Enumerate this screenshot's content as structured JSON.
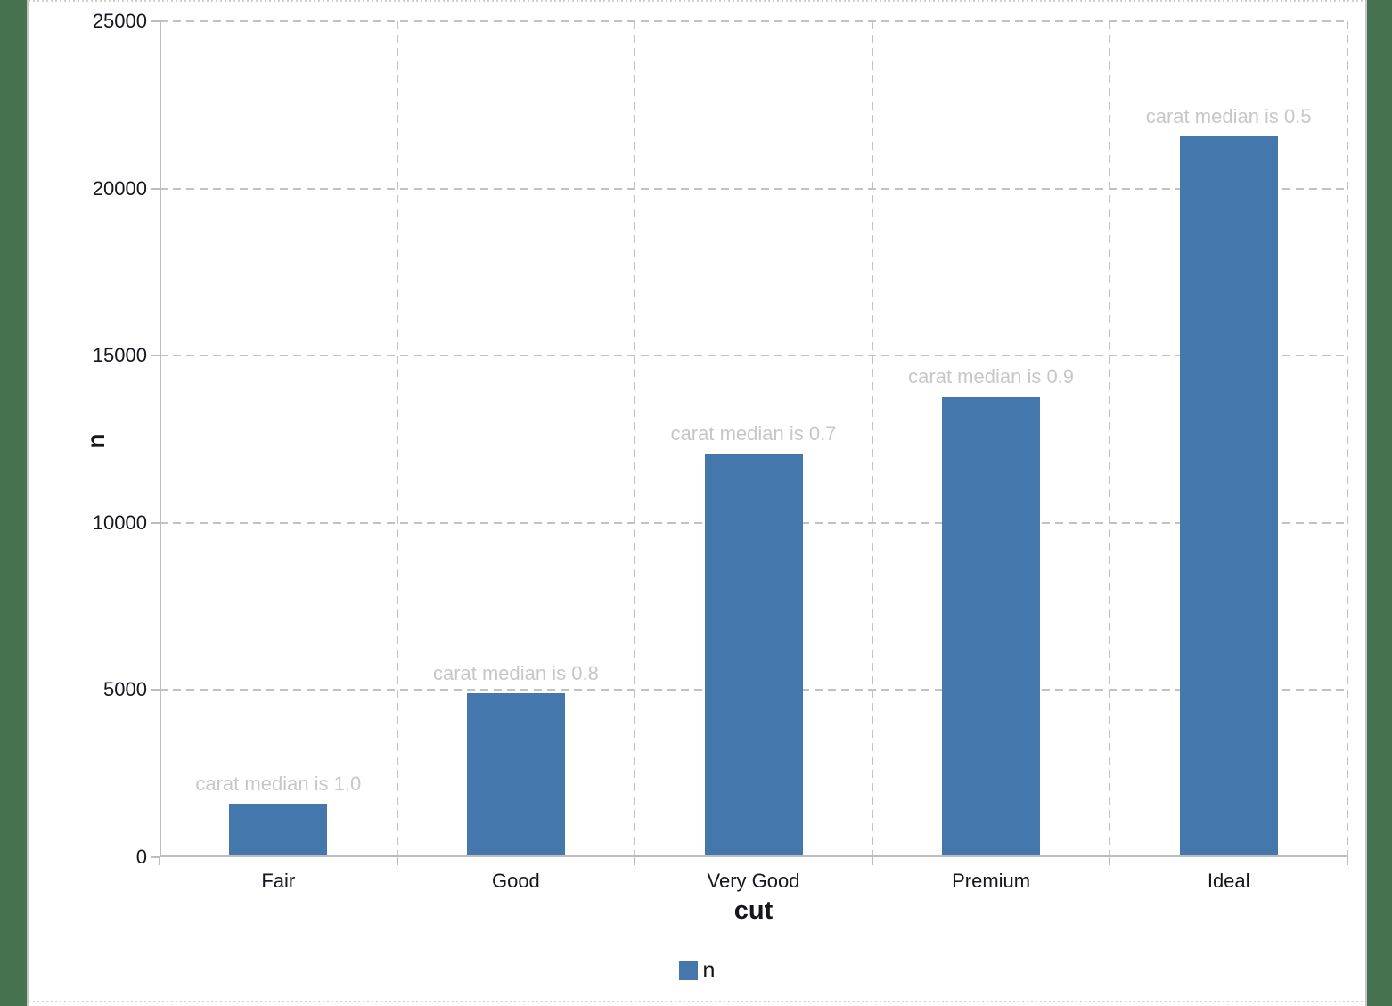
{
  "page": {
    "outer_background": "#47724F",
    "canvas_background": "#FFFFFF"
  },
  "chart_data": {
    "type": "bar",
    "title": "",
    "categories": [
      "Fair",
      "Good",
      "Very Good",
      "Premium",
      "Ideal"
    ],
    "series": [
      {
        "name": "n",
        "color": "#4478AC",
        "values": [
          1610,
          4906,
          12082,
          13791,
          21551
        ]
      }
    ],
    "bar_annotations": [
      "carat median is 1.0",
      "carat median is 0.8",
      "carat median is 0.7",
      "carat median is 0.9",
      "carat median is 0.5"
    ],
    "xlabel": "cut",
    "ylabel": "n",
    "ylim": [
      0,
      25000
    ],
    "yticks": [
      0,
      5000,
      10000,
      15000,
      20000,
      25000
    ],
    "grid": {
      "horizontal": "dashed",
      "vertical": "dashed-at-category-boundaries"
    },
    "legend": {
      "position": "bottom-center",
      "items": [
        {
          "label": "n",
          "color": "#4478AC"
        }
      ]
    },
    "colors": {
      "bar": "#4478AC",
      "annotation_text": "#C7C7C7",
      "gridline": "#C2C2C2",
      "axis_line": "#BDBDBD",
      "tick_text": "#16161E"
    }
  }
}
